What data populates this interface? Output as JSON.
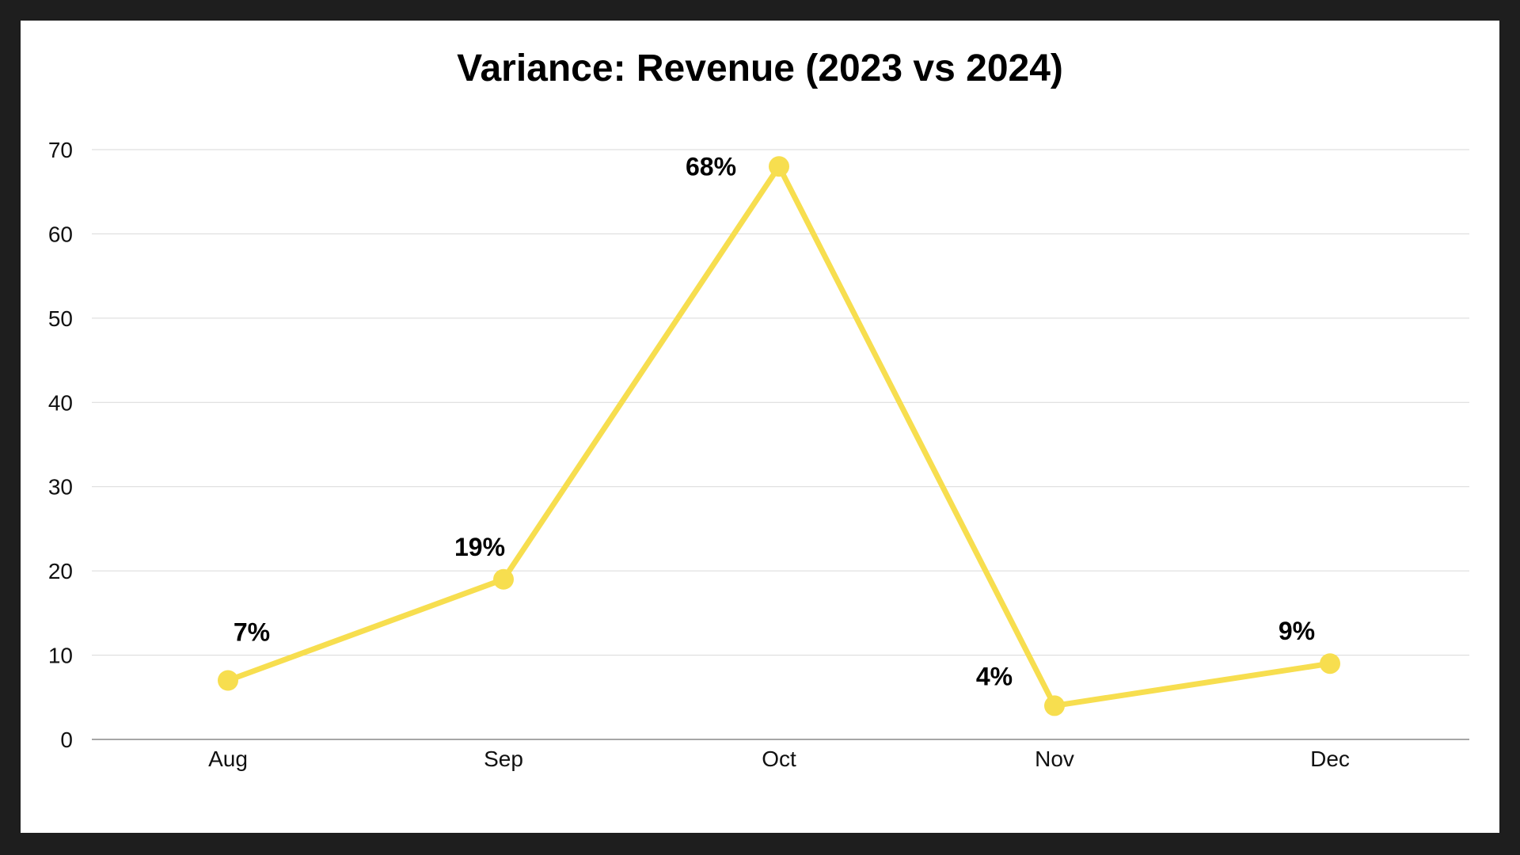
{
  "chart_data": {
    "type": "line",
    "title": "Variance: Revenue (2023 vs 2024)",
    "xlabel": "",
    "ylabel": "",
    "categories": [
      "Aug",
      "Sep",
      "Oct",
      "Nov",
      "Dec"
    ],
    "series": [
      {
        "values": [
          7,
          19,
          68,
          4,
          9
        ],
        "data_labels": [
          "7%",
          "19%",
          "68%",
          "4%",
          "9%"
        ],
        "color": "#f7de4f"
      }
    ],
    "ylim": [
      0,
      70
    ],
    "yticks": [
      "0",
      "10",
      "20",
      "30",
      "40",
      "50",
      "60",
      "70"
    ],
    "grid": true,
    "legend": "none"
  },
  "colors": {
    "background": "#1e1e1e",
    "panel": "#ffffff",
    "gridline": "#d9d9d9",
    "axis": "#888888",
    "line": "#f7de4f"
  }
}
